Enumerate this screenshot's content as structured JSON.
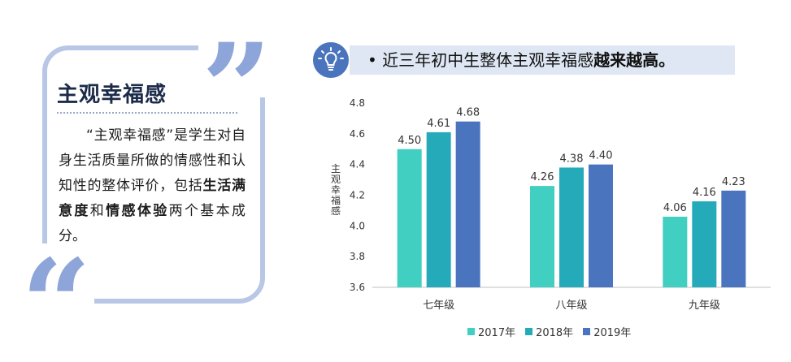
{
  "card": {
    "title": "主观幸福感",
    "body_intro": "“主观幸福感”是学生对自身生活质量所做的情感性和认知性的整体评价，包括",
    "body_bold1": "生活满意度",
    "body_mid": "和",
    "body_bold2": "情感体验",
    "body_end": "两个基本成分。",
    "quote_open": "“",
    "quote_close": "”"
  },
  "header": {
    "text_prefix": "• 近三年初中生整体主观幸福感",
    "text_bold": "越来越高。",
    "icon": "lightbulb-icon"
  },
  "chart_data": {
    "type": "bar",
    "categories": [
      "七年级",
      "八年级",
      "九年级"
    ],
    "series": [
      {
        "name": "2017年",
        "color": "#40cfc0",
        "values": [
          4.5,
          4.26,
          4.06
        ]
      },
      {
        "name": "2018年",
        "color": "#25aab9",
        "values": [
          4.61,
          4.38,
          4.16
        ]
      },
      {
        "name": "2019年",
        "color": "#4a74bd",
        "values": [
          4.68,
          4.4,
          4.23
        ]
      }
    ],
    "ylabel": "主观幸福感",
    "ylim": [
      3.6,
      4.8
    ],
    "yticks": [
      "3.6",
      "3.8",
      "4.0",
      "4.2",
      "4.4",
      "4.6",
      "4.8"
    ],
    "value_labels": [
      [
        "4.50",
        "4.26",
        "4.06"
      ],
      [
        "4.61",
        "4.38",
        "4.16"
      ],
      [
        "4.68",
        "4.40",
        "4.23"
      ]
    ],
    "grid": false,
    "legend_position": "bottom"
  }
}
